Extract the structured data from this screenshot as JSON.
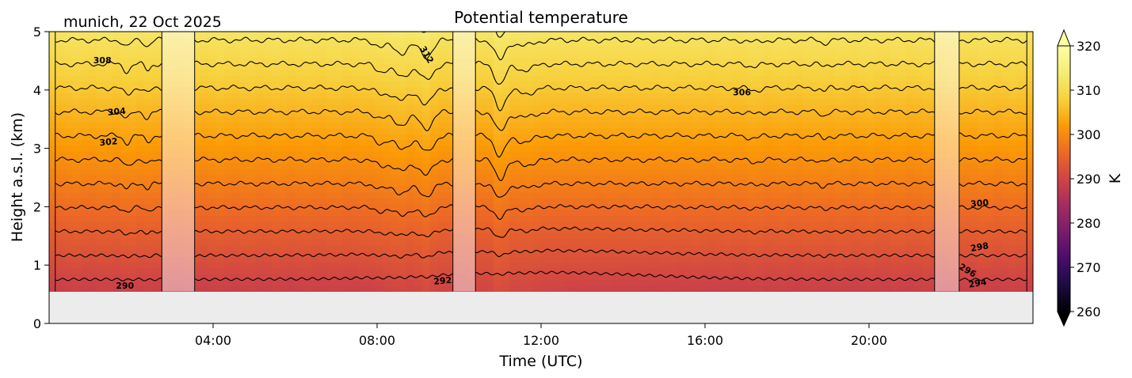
{
  "chart_data": {
    "type": "heatmap",
    "title": "Potential temperature",
    "subtitle": "munich, 22 Oct 2025",
    "xlabel": "Time (UTC)",
    "ylabel": "Height a.s.l. (km)",
    "xlim_hours": [
      0,
      24
    ],
    "ylim": [
      0,
      5
    ],
    "x_ticks": [
      {
        "hour": 4,
        "label": "04:00"
      },
      {
        "hour": 8,
        "label": "08:00"
      },
      {
        "hour": 12,
        "label": "12:00"
      },
      {
        "hour": 16,
        "label": "16:00"
      },
      {
        "hour": 20,
        "label": "20:00"
      }
    ],
    "y_ticks": [
      {
        "value": 0,
        "label": "0"
      },
      {
        "value": 1,
        "label": "1"
      },
      {
        "value": 2,
        "label": "2"
      },
      {
        "value": 3,
        "label": "3"
      },
      {
        "value": 4,
        "label": "4"
      },
      {
        "value": 5,
        "label": "5"
      }
    ],
    "colorbar": {
      "label": "K",
      "min": 260,
      "max": 320,
      "colormap": "inferno",
      "extend": "both",
      "ticks": [
        {
          "value": 260,
          "label": "260"
        },
        {
          "value": 270,
          "label": "270"
        },
        {
          "value": 280,
          "label": "280"
        },
        {
          "value": 290,
          "label": "290"
        },
        {
          "value": 300,
          "label": "300"
        },
        {
          "value": 310,
          "label": "310"
        },
        {
          "value": 320,
          "label": "320"
        }
      ]
    },
    "data_bottom_height_km": 0.55,
    "surface_theta_K": 289,
    "top_theta_K": 312,
    "missing_data_color": "#ececec",
    "gaps_hours": [
      [
        2.75,
        3.55
      ],
      [
        9.85,
        10.4
      ],
      [
        21.6,
        22.2
      ]
    ],
    "contour_levels_K": [
      290,
      292,
      294,
      296,
      298,
      300,
      302,
      304,
      306,
      308,
      310,
      312
    ],
    "contour_labels": [
      {
        "text": "290",
        "hour": 1.85,
        "height": 0.64,
        "angle": 0
      },
      {
        "text": "292",
        "hour": 9.6,
        "height": 0.72,
        "angle": -5
      },
      {
        "text": "294",
        "hour": 22.65,
        "height": 0.68,
        "angle": -10
      },
      {
        "text": "296",
        "hour": 22.4,
        "height": 0.9,
        "angle": 30
      },
      {
        "text": "298",
        "hour": 22.7,
        "height": 1.3,
        "angle": -10
      },
      {
        "text": "300",
        "hour": 22.7,
        "height": 2.05,
        "angle": -5
      },
      {
        "text": "302",
        "hour": 1.45,
        "height": 3.1,
        "angle": -5
      },
      {
        "text": "304",
        "hour": 1.65,
        "height": 3.62,
        "angle": -5
      },
      {
        "text": "306",
        "hour": 16.9,
        "height": 3.95,
        "angle": 0
      },
      {
        "text": "308",
        "hour": 1.3,
        "height": 4.5,
        "angle": 0
      },
      {
        "text": "312",
        "hour": 9.2,
        "height": 4.6,
        "angle": 60
      }
    ]
  }
}
